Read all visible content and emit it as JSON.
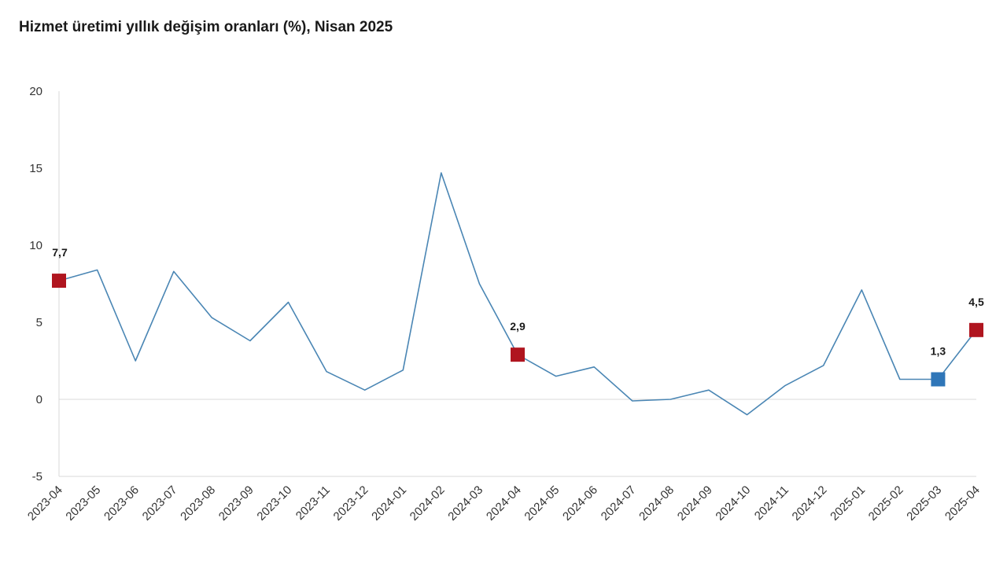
{
  "title": "Hizmet üretimi yıllık değişim oranları (%), Nisan 2025",
  "colors": {
    "line": "#4a86b4",
    "highlight_red": "#b0151f",
    "highlight_blue": "#2f76b8",
    "zero_line": "#d9d9d9"
  },
  "chart_data": {
    "type": "line",
    "title": "Hizmet üretimi yıllık değişim oranları (%), Nisan 2025",
    "xlabel": "",
    "ylabel": "",
    "ylim": [
      -5,
      20
    ],
    "yticks": [
      "20",
      "15",
      "10",
      "5",
      "0",
      "-5"
    ],
    "ytick_values": [
      20,
      15,
      10,
      5,
      0,
      -5
    ],
    "grid": false,
    "categories": [
      "2023-04",
      "2023-05",
      "2023-06",
      "2023-07",
      "2023-08",
      "2023-09",
      "2023-10",
      "2023-11",
      "2023-12",
      "2024-01",
      "2024-02",
      "2024-03",
      "2024-04",
      "2024-05",
      "2024-06",
      "2024-07",
      "2024-08",
      "2024-09",
      "2024-10",
      "2024-11",
      "2024-12",
      "2025-01",
      "2025-02",
      "2025-03",
      "2025-04"
    ],
    "series": [
      {
        "values": [
          7.7,
          8.4,
          2.5,
          8.3,
          5.3,
          3.8,
          6.3,
          1.8,
          0.6,
          1.9,
          14.7,
          7.5,
          2.9,
          1.5,
          2.1,
          -0.1,
          0.0,
          0.6,
          -1.0,
          0.9,
          2.2,
          7.1,
          1.3,
          1.3,
          4.5
        ]
      }
    ],
    "highlights": [
      {
        "index": 0,
        "label": "7,7",
        "color": "red"
      },
      {
        "index": 12,
        "label": "2,9",
        "color": "red"
      },
      {
        "index": 23,
        "label": "1,3",
        "color": "blue"
      },
      {
        "index": 24,
        "label": "4,5",
        "color": "red"
      }
    ]
  }
}
